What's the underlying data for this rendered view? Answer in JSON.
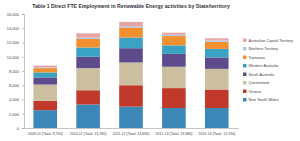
{
  "chart_data": {
    "type": "bar",
    "stacked": true,
    "legend": "right",
    "title": "Table 1 Direct FTE Employment in Renewable Energy activities by State/territory",
    "categories": [
      "2009-10 (Total: 8,750)",
      "2010-11 (Total: 13,280)",
      "2011-12 (Total: 14,890)",
      "2012-13 (Total: 13,380)",
      "2013-14 (Total: 12,590)"
    ],
    "series": [
      {
        "name": "New South Wales",
        "color": "#3b87b8",
        "values": [
          2500,
          3300,
          3000,
          2800,
          2800
        ]
      },
      {
        "name": "Victoria",
        "color": "#c0392b",
        "values": [
          1300,
          2000,
          3000,
          2800,
          2600
        ]
      },
      {
        "name": "Queensland",
        "color": "#cbbf9f",
        "values": [
          2300,
          3100,
          3200,
          3000,
          2900
        ]
      },
      {
        "name": "South Australia",
        "color": "#5e4b8b",
        "values": [
          1000,
          1600,
          2000,
          1800,
          1600
        ]
      },
      {
        "name": "Western Australia",
        "color": "#3aa3c4",
        "values": [
          700,
          1300,
          1500,
          1200,
          1200
        ]
      },
      {
        "name": "Tasmania",
        "color": "#f2902f",
        "values": [
          600,
          1200,
          1400,
          1300,
          1000
        ]
      },
      {
        "name": "Northern Territory",
        "color": "#a9c6e6",
        "values": [
          100,
          180,
          190,
          180,
          190
        ]
      },
      {
        "name": "Australian Capital Territory",
        "color": "#e8a3a3",
        "values": [
          250,
          600,
          600,
          300,
          300
        ]
      }
    ],
    "ylim": [
      0,
      16000
    ],
    "yticks": [
      0,
      {
        "value": 2000,
        "label": "2,000"
      },
      {
        "value": 4000,
        "label": "4,000"
      },
      {
        "value": 6000,
        "label": "6,000"
      },
      {
        "value": 8000,
        "label": "8,000"
      },
      {
        "value": 10000,
        "label": "10,000"
      },
      {
        "value": 12000,
        "label": "12,000"
      },
      {
        "value": 14000,
        "label": "14,000"
      },
      {
        "value": 16000,
        "label": "16,000"
      }
    ]
  }
}
